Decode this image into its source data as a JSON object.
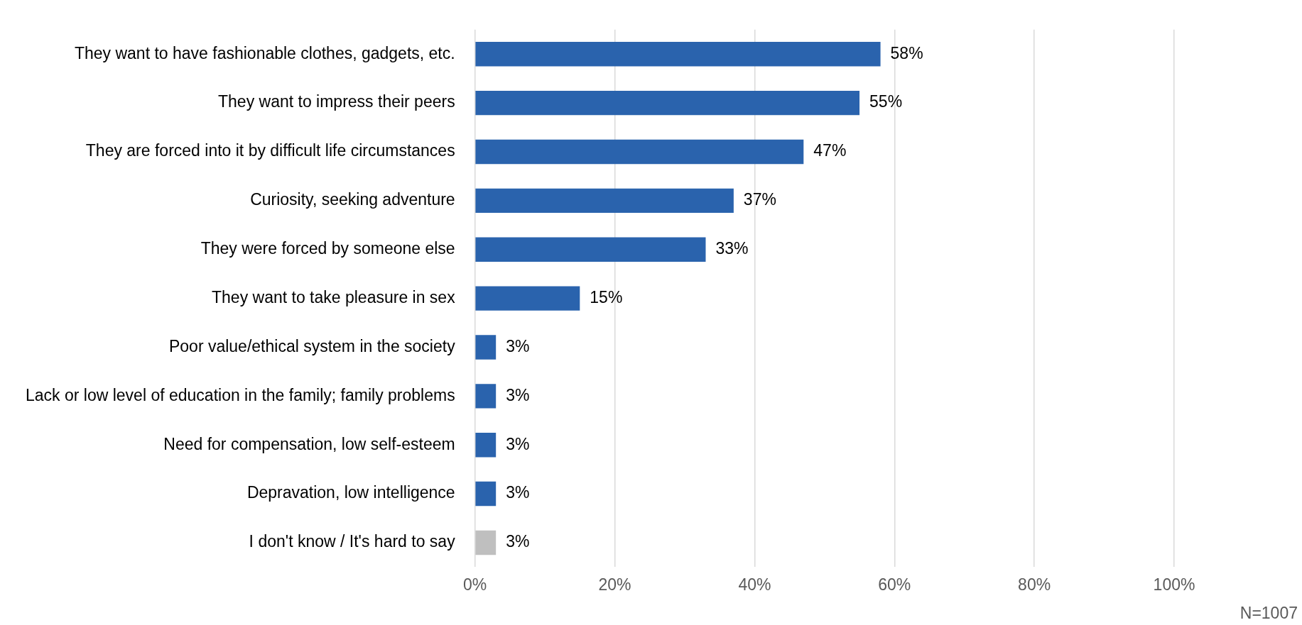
{
  "chart_data": {
    "type": "bar",
    "orientation": "horizontal",
    "categories": [
      "They want to have fashionable clothes, gadgets, etc.",
      "They want to impress their peers",
      "They are forced into it by difficult life circumstances",
      "Curiosity, seeking adventure",
      "They were forced by someone else",
      "They want to take pleasure in sex",
      "Poor value/ethical system in the society",
      "Lack or low level of education in the family; family problems",
      "Need for compensation, low self-esteem",
      "Depravation, low intelligence",
      "I don't know / It's hard to say"
    ],
    "values": [
      58,
      55,
      47,
      37,
      33,
      15,
      3,
      3,
      3,
      3,
      3
    ],
    "value_labels": [
      "58%",
      "55%",
      "47%",
      "37%",
      "33%",
      "15%",
      "3%",
      "3%",
      "3%",
      "3%",
      "3%"
    ],
    "colors": [
      "#2a63ad",
      "#2a63ad",
      "#2a63ad",
      "#2a63ad",
      "#2a63ad",
      "#2a63ad",
      "#2a63ad",
      "#2a63ad",
      "#2a63ad",
      "#2a63ad",
      "#bfbfbf"
    ],
    "xlim": [
      0,
      100
    ],
    "xticks": [
      {
        "value": 0,
        "label": "0%"
      },
      {
        "value": 20,
        "label": "20%"
      },
      {
        "value": 40,
        "label": "40%"
      },
      {
        "value": 60,
        "label": "60%"
      },
      {
        "value": 80,
        "label": "80%"
      },
      {
        "value": 100,
        "label": "100%"
      }
    ],
    "grid": "x",
    "legend": false,
    "annotations": [
      "N=1007"
    ]
  }
}
